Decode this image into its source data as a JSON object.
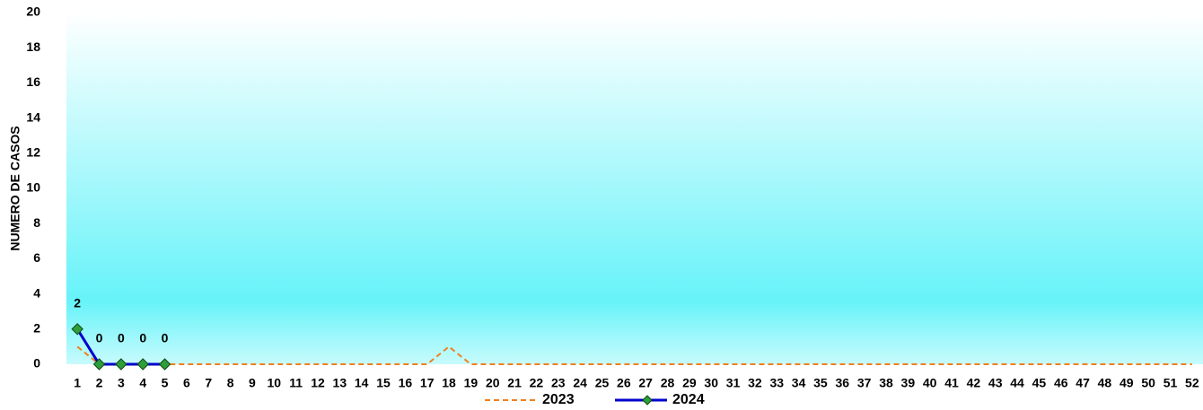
{
  "chart_data": {
    "type": "line",
    "y_label": "NUMERO DE CASOS",
    "categories": [
      1,
      2,
      3,
      4,
      5,
      6,
      7,
      8,
      9,
      10,
      11,
      12,
      13,
      14,
      15,
      16,
      17,
      18,
      19,
      20,
      21,
      22,
      23,
      24,
      25,
      26,
      27,
      28,
      29,
      30,
      31,
      32,
      33,
      34,
      35,
      36,
      37,
      38,
      39,
      40,
      41,
      42,
      43,
      44,
      45,
      46,
      47,
      48,
      49,
      50,
      51,
      52
    ],
    "series": [
      {
        "name": "2023",
        "color": "#f07f1f",
        "dashed": true,
        "markers": false,
        "data_labels": false,
        "values": [
          1,
          0,
          0,
          0,
          0,
          0,
          0,
          0,
          0,
          0,
          0,
          0,
          0,
          0,
          0,
          0,
          0,
          1,
          0,
          0,
          0,
          0,
          0,
          0,
          0,
          0,
          0,
          0,
          0,
          0,
          0,
          0,
          0,
          0,
          0,
          0,
          0,
          0,
          0,
          0,
          0,
          0,
          0,
          0,
          0,
          0,
          0,
          0,
          0,
          0,
          0,
          0
        ]
      },
      {
        "name": "2024",
        "color": "#0000cc",
        "dashed": false,
        "markers": true,
        "marker_color": "#2e9e3a",
        "data_labels": true,
        "values": [
          2,
          0,
          0,
          0,
          0,
          null,
          null,
          null,
          null,
          null,
          null,
          null,
          null,
          null,
          null,
          null,
          null,
          null,
          null,
          null,
          null,
          null,
          null,
          null,
          null,
          null,
          null,
          null,
          null,
          null,
          null,
          null,
          null,
          null,
          null,
          null,
          null,
          null,
          null,
          null,
          null,
          null,
          null,
          null,
          null,
          null,
          null,
          null,
          null,
          null,
          null,
          null
        ]
      }
    ],
    "ylim": [
      0,
      20
    ],
    "yticks": [
      0,
      2,
      4,
      6,
      8,
      10,
      12,
      14,
      16,
      18,
      20
    ],
    "grid": false,
    "legend": "bottom"
  }
}
